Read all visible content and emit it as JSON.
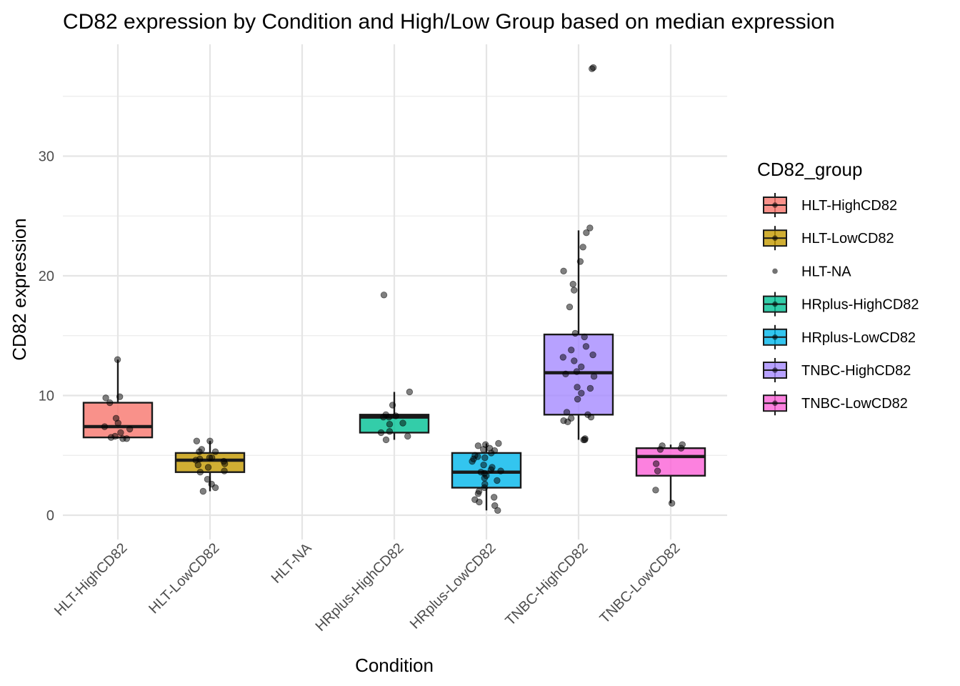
{
  "chart_data": {
    "type": "boxplot",
    "title": "CD82 expression by Condition and High/Low Group based on median expression",
    "xlabel": "Condition",
    "ylabel": "CD82 expression",
    "ylim": [
      -1.5,
      39.3
    ],
    "yticks": [
      0,
      10,
      20,
      30
    ],
    "grid": true,
    "legend_position": "right",
    "legend_title": "CD82_group",
    "categories": [
      "HLT-HighCD82",
      "HLT-LowCD82",
      "HLT-NA",
      "HRplus-HighCD82",
      "HRplus-LowCD82",
      "TNBC-HighCD82",
      "TNBC-LowCD82"
    ],
    "series": [
      {
        "name": "HLT-HighCD82",
        "color": "#F8766D",
        "box": {
          "min": 6.4,
          "q1": 6.5,
          "median": 7.4,
          "q3": 9.4,
          "max": 13.0
        },
        "points": [
          13.0,
          9.9,
          9.8,
          9.4,
          8.1,
          7.7,
          7.4,
          7.2,
          6.9,
          6.6,
          6.5,
          6.4,
          6.4
        ]
      },
      {
        "name": "HLT-LowCD82",
        "color": "#C49A00",
        "box": {
          "min": 2.0,
          "q1": 3.6,
          "median": 4.6,
          "q3": 5.2,
          "max": 6.2
        },
        "points": [
          6.2,
          6.2,
          5.5,
          5.3,
          5.3,
          4.8,
          4.8,
          4.7,
          4.6,
          4.5,
          4.3,
          4.2,
          4.0,
          3.7,
          3.6,
          3.0,
          2.6,
          2.3,
          2.0
        ]
      },
      {
        "name": "HLT-NA",
        "color": "#53B400",
        "box": null,
        "points": []
      },
      {
        "name": "HRplus-HighCD82",
        "color": "#00C094",
        "box": {
          "min": 6.3,
          "q1": 6.9,
          "median": 8.2,
          "q3": 8.4,
          "max": 10.3
        },
        "points": [
          18.4,
          10.3,
          9.2,
          8.4,
          8.3,
          8.2,
          8.2,
          7.7,
          7.6,
          7.0,
          6.9,
          6.6,
          6.3
        ]
      },
      {
        "name": "HRplus-LowCD82",
        "color": "#00B6EB",
        "box": {
          "min": 0.4,
          "q1": 2.3,
          "median": 3.6,
          "q3": 5.2,
          "max": 6.0
        },
        "points": [
          6.0,
          5.9,
          5.8,
          5.6,
          5.5,
          5.4,
          5.2,
          5.0,
          4.9,
          4.8,
          4.7,
          4.5,
          4.2,
          4.0,
          3.8,
          3.7,
          3.6,
          3.5,
          3.3,
          3.1,
          2.9,
          2.6,
          2.3,
          2.0,
          1.8,
          1.5,
          1.3,
          1.1,
          0.8,
          0.4
        ]
      },
      {
        "name": "TNBC-HighCD82",
        "color": "#A58AFF",
        "box": {
          "min": 6.3,
          "q1": 8.4,
          "median": 11.9,
          "q3": 15.1,
          "max": 23.8
        },
        "points": [
          37.4,
          37.3,
          24.0,
          23.6,
          22.4,
          21.2,
          20.4,
          19.3,
          18.8,
          17.4,
          15.2,
          14.9,
          14.1,
          13.8,
          13.4,
          13.2,
          12.9,
          12.4,
          12.0,
          11.8,
          11.6,
          10.7,
          10.6,
          10.2,
          9.7,
          8.6,
          8.4,
          8.2,
          8.1,
          7.9,
          7.8,
          6.4,
          6.3,
          6.3
        ]
      },
      {
        "name": "TNBC-LowCD82",
        "color": "#FB61D7",
        "box": {
          "min": 1.0,
          "q1": 3.3,
          "median": 4.9,
          "q3": 5.6,
          "max": 5.9
        },
        "points": [
          5.9,
          5.8,
          5.6,
          5.5,
          4.3,
          3.7,
          2.1,
          1.0
        ]
      }
    ]
  }
}
